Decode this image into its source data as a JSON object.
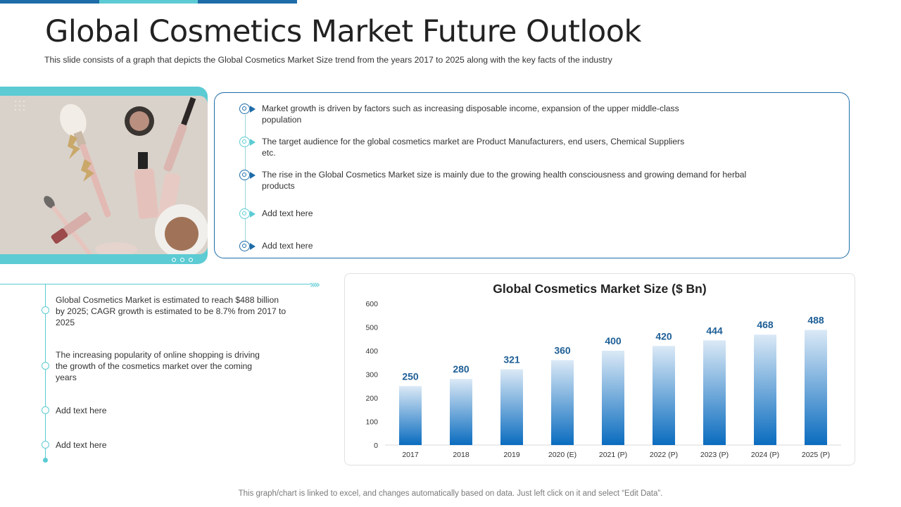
{
  "slide": {
    "title": "Global Cosmetics Market Future Outlook",
    "subtitle": "This slide consists of a graph that depicts the Global Cosmetics Market Size trend from the years 2017 to 2025 along with the key facts of the industry",
    "footer": "This graph/chart is linked to excel, and changes automatically based on data. Just left click on it and select “Edit Data”."
  },
  "colors": {
    "dark_blue": "#1e6ca8",
    "teal": "#5ccbd3",
    "bar_top": "#dbe9f6",
    "bar_bottom": "#0a6cbf",
    "value_label": "#1e5f96"
  },
  "top_bullets": [
    {
      "text": "Market growth is driven  by factors such as increasing disposable income, expansion of the upper middle-class population",
      "color": "#1e6ca8"
    },
    {
      "text": "The target audience for the global cosmetics market are Product Manufacturers,  end users, Chemical Suppliers etc.",
      "color": "#5ccbd3"
    },
    {
      "text": "The rise in the Global Cosmetics Market size is mainly due to the growing health consciousness and growing demand for herbal products",
      "color": "#1e6ca8"
    },
    {
      "text": "Add text here",
      "color": "#5ccbd3"
    },
    {
      "text": "Add text here",
      "color": "#1e6ca8"
    }
  ],
  "left_items": [
    {
      "text": "Global Cosmetics Market is estimated to reach $488 billion by 2025; CAGR growth is estimated to be 8.7% from 2017 to 2025"
    },
    {
      "text": "The increasing popularity of online shopping is driving the growth of the cosmetics market over the coming years"
    },
    {
      "text": "Add text here"
    },
    {
      "text": "Add text here"
    }
  ],
  "chart_data": {
    "type": "bar",
    "title": "Global Cosmetics Market Size ($ Bn)",
    "categories": [
      "2017",
      "2018",
      "2019",
      "2020 (E)",
      "2021 (P)",
      "2022 (P)",
      "2023 (P)",
      "2024 (P)",
      "2025 (P)"
    ],
    "values": [
      250,
      280,
      321,
      360,
      400,
      420,
      444,
      468,
      488
    ],
    "ylim": [
      0,
      600
    ],
    "yticks": [
      0,
      100,
      200,
      300,
      400,
      500,
      600
    ],
    "grid": false,
    "legend": "none",
    "data_labels": true
  }
}
